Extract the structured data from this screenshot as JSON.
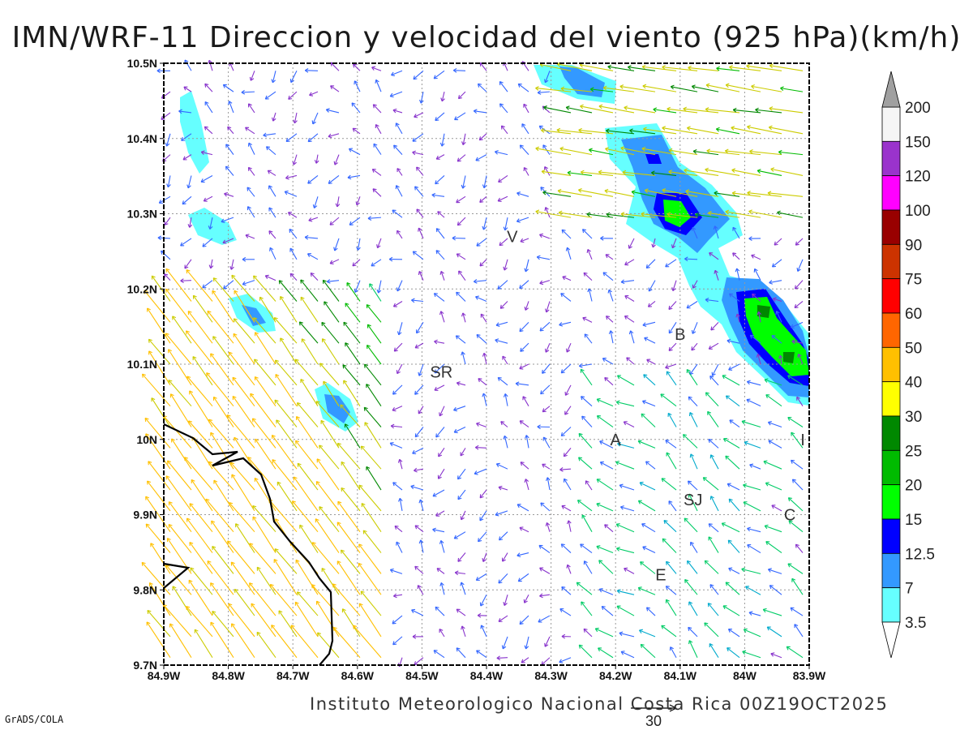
{
  "title": "IMN/WRF-11 Direccion y velocidad del viento (925 hPa)(km/h)",
  "footer": "Instituto Meteorologico Nacional Costa Rica 00Z19OCT2025",
  "credit": "GrADS/COLA",
  "reference_vector_label": "30",
  "lat_labels": [
    "10.5N",
    "10.4N",
    "10.3N",
    "10.2N",
    "10.1N",
    "10N",
    "9.9N",
    "9.8N",
    "9.7N"
  ],
  "lon_labels": [
    "84.9W",
    "84.8W",
    "84.7W",
    "84.6W",
    "84.5W",
    "84.4W",
    "84.3W",
    "84.2W",
    "84.1W",
    "84W",
    "83.9W"
  ],
  "place_labels": [
    {
      "name": "V",
      "lon": -84.36,
      "lat": 10.27
    },
    {
      "name": "SR",
      "lon": -84.47,
      "lat": 10.09
    },
    {
      "name": "B",
      "lon": -84.1,
      "lat": 10.14
    },
    {
      "name": "A",
      "lon": -84.2,
      "lat": 10.0
    },
    {
      "name": "I",
      "lon": -83.91,
      "lat": 10.0
    },
    {
      "name": "SJ",
      "lon": -84.08,
      "lat": 9.92
    },
    {
      "name": "C",
      "lon": -83.93,
      "lat": 9.9
    },
    {
      "name": "E",
      "lon": -84.13,
      "lat": 9.82
    }
  ],
  "colorbar": {
    "labels": [
      "200",
      "150",
      "120",
      "100",
      "90",
      "75",
      "60",
      "50",
      "40",
      "30",
      "25",
      "20",
      "15",
      "12.5",
      "7",
      "3.5"
    ],
    "colors": [
      "#a0a0a0",
      "#f5f5f5",
      "#9a33cc",
      "#ff00ff",
      "#990000",
      "#cc3300",
      "#ff0000",
      "#ff6600",
      "#ffc000",
      "#ffff00",
      "#008800",
      "#00bb00",
      "#00ff00",
      "#0000ff",
      "#3399ff",
      "#66ffff"
    ]
  },
  "colors": {
    "coastline": "#000000",
    "grid": "#999999"
  }
}
